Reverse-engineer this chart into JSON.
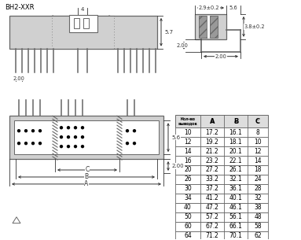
{
  "title": "BH2-XXR",
  "table_header": [
    "Кол-во\nвыводов",
    "A",
    "B",
    "C"
  ],
  "table_data": [
    [
      10,
      17.2,
      16.1,
      8
    ],
    [
      12,
      19.2,
      18.1,
      10
    ],
    [
      14,
      21.2,
      20.1,
      12
    ],
    [
      16,
      23.2,
      22.1,
      14
    ],
    [
      20,
      27.2,
      26.1,
      18
    ],
    [
      26,
      33.2,
      32.1,
      24
    ],
    [
      30,
      37.2,
      36.1,
      28
    ],
    [
      34,
      41.2,
      40.1,
      32
    ],
    [
      40,
      47.2,
      46.1,
      38
    ],
    [
      50,
      57.2,
      56.1,
      48
    ],
    [
      60,
      67.2,
      66.1,
      58
    ],
    [
      64,
      71.2,
      70.1,
      62
    ]
  ],
  "dim_color": "#333333",
  "line_color": "#666666",
  "fill_color": "#d0d0d0",
  "dark_fill": "#999999",
  "hatch_fill": "#aaaaaa"
}
